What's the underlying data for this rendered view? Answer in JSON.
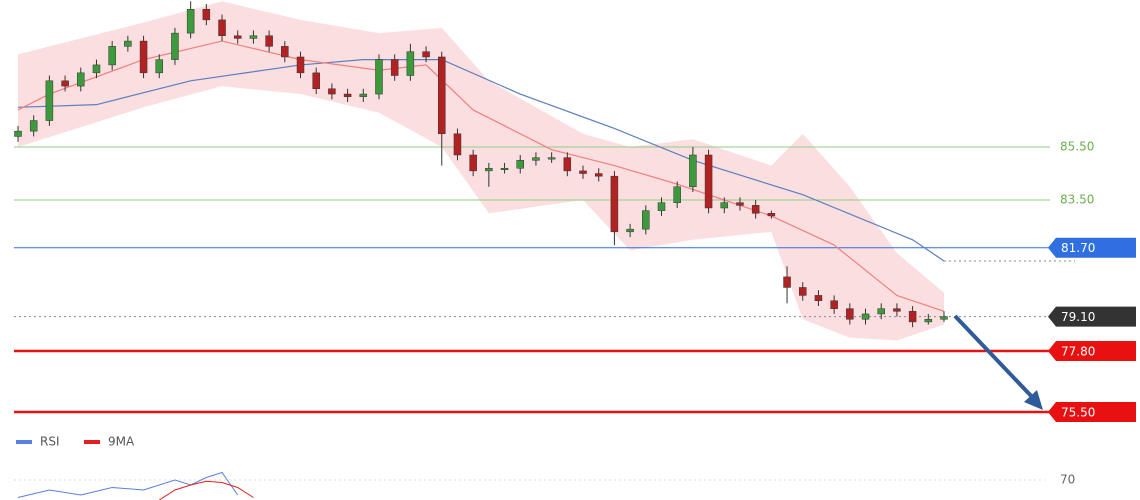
{
  "chart_data": {
    "type": "candlestick",
    "xlim": [
      0,
      59
    ],
    "ylim": [
      74.82,
      91.05
    ],
    "up_color": "#3c9a3c",
    "down_color": "#b22222",
    "open": [
      85.9,
      86.1,
      86.5,
      88.0,
      87.8,
      88.3,
      88.6,
      89.3,
      89.5,
      88.3,
      88.8,
      89.8,
      90.7,
      90.3,
      89.7,
      89.6,
      89.7,
      89.3,
      88.9,
      88.3,
      87.7,
      87.5,
      87.4,
      87.5,
      88.8,
      88.2,
      89.1,
      88.9,
      86.0,
      85.2,
      84.6,
      84.7,
      84.7,
      85.0,
      85.1,
      85.1,
      84.6,
      84.5,
      84.4,
      82.3,
      82.4,
      83.1,
      83.4,
      84.0,
      85.2,
      83.2,
      83.4,
      83.3,
      83.0,
      80.6,
      80.2,
      79.9,
      79.7,
      79.4,
      79.0,
      79.2,
      79.4,
      79.3,
      78.9,
      79.0
    ],
    "high": [
      86.3,
      86.7,
      88.2,
      88.2,
      88.5,
      88.8,
      89.5,
      89.7,
      89.7,
      89.0,
      90.0,
      91.0,
      90.9,
      90.5,
      89.9,
      89.9,
      89.9,
      89.5,
      89.1,
      88.5,
      87.9,
      87.7,
      87.7,
      89.0,
      89.0,
      89.4,
      89.3,
      89.1,
      86.2,
      85.4,
      84.9,
      84.9,
      85.2,
      85.3,
      85.3,
      85.3,
      84.8,
      84.7,
      84.6,
      82.6,
      83.3,
      83.6,
      84.2,
      85.5,
      85.4,
      83.6,
      83.6,
      83.5,
      83.1,
      81.0,
      80.4,
      80.1,
      79.9,
      79.6,
      79.4,
      79.6,
      79.6,
      79.5,
      79.2,
      79.3
    ],
    "low": [
      85.7,
      85.9,
      86.3,
      87.6,
      87.6,
      88.1,
      88.4,
      89.1,
      88.1,
      88.1,
      88.6,
      89.6,
      90.1,
      89.5,
      89.4,
      89.4,
      89.1,
      88.7,
      88.1,
      87.5,
      87.3,
      87.2,
      87.2,
      87.3,
      88.0,
      88.0,
      88.7,
      84.8,
      85.0,
      84.4,
      84.0,
      84.5,
      84.5,
      84.8,
      84.9,
      84.4,
      84.3,
      84.2,
      81.8,
      82.1,
      82.2,
      82.9,
      83.2,
      83.8,
      83.0,
      83.0,
      83.1,
      82.8,
      82.8,
      79.6,
      79.7,
      79.5,
      79.2,
      78.8,
      78.8,
      79.0,
      79.1,
      78.7,
      78.8,
      78.9
    ],
    "close": [
      86.1,
      86.5,
      88.0,
      87.8,
      88.3,
      88.6,
      89.3,
      89.5,
      88.3,
      88.8,
      89.8,
      90.7,
      90.3,
      89.7,
      89.6,
      89.7,
      89.3,
      88.9,
      88.3,
      87.7,
      87.5,
      87.4,
      87.5,
      88.8,
      88.2,
      89.1,
      88.9,
      86.0,
      85.2,
      84.6,
      84.7,
      84.7,
      85.0,
      85.1,
      85.1,
      84.6,
      84.5,
      84.4,
      82.3,
      82.4,
      83.1,
      83.4,
      84.0,
      85.2,
      83.2,
      83.4,
      83.3,
      83.0,
      82.9,
      80.2,
      79.9,
      79.7,
      79.4,
      79.0,
      79.2,
      79.4,
      79.3,
      78.9,
      79.0,
      79.1
    ],
    "band": {
      "color": "#f8c8cc",
      "x": [
        0,
        8,
        13,
        18,
        23,
        27,
        30,
        36,
        39,
        43,
        48,
        50,
        53,
        56,
        59
      ],
      "upper": [
        89.0,
        90.2,
        91.0,
        90.3,
        89.8,
        90.0,
        88.0,
        86.0,
        85.5,
        85.8,
        84.8,
        86.0,
        84.0,
        81.5,
        80.0
      ],
      "lower": [
        85.5,
        87.0,
        87.8,
        87.5,
        86.8,
        85.5,
        83.0,
        83.5,
        81.6,
        82.0,
        82.3,
        79.0,
        78.3,
        78.2,
        78.8
      ]
    },
    "lines": [
      {
        "color": "#5b7fbf",
        "x": [
          0,
          5,
          11,
          18,
          22,
          27,
          32,
          38,
          43,
          50,
          57,
          59
        ],
        "values": [
          87.0,
          87.1,
          88.0,
          88.6,
          88.8,
          88.8,
          87.5,
          86.2,
          85.0,
          83.7,
          82.0,
          81.2
        ]
      },
      {
        "color": "#f08080",
        "x": [
          0,
          2,
          8,
          13,
          18,
          23,
          26,
          29,
          34,
          38,
          42,
          46,
          48,
          52,
          56,
          59
        ],
        "values": [
          86.9,
          87.5,
          88.8,
          89.5,
          88.8,
          88.4,
          88.6,
          86.9,
          85.4,
          84.8,
          84.1,
          83.3,
          82.9,
          81.8,
          79.9,
          79.3
        ]
      }
    ],
    "levels": [
      {
        "value": 85.5,
        "label": "85.50",
        "color": "#8fcf7f",
        "tag": false
      },
      {
        "value": 83.5,
        "label": "83.50",
        "color": "#8fcf7f",
        "tag": false
      },
      {
        "value": 81.7,
        "label": "81.70",
        "color": "#2f6fe0",
        "tag": true
      },
      {
        "value": 79.1,
        "label": "79.10",
        "color": "#333333",
        "tag": true,
        "dotted": true
      },
      {
        "value": 77.8,
        "label": "77.80",
        "color": "#e81010",
        "tag": true
      },
      {
        "value": 75.5,
        "label": "75.50",
        "color": "#e81010",
        "tag": true
      }
    ],
    "rsi_panel": {
      "ylim": [
        62,
        74
      ],
      "yticks": [
        70
      ],
      "series": [
        {
          "name": "RSI",
          "color": "#5b7fdf",
          "x": [
            0,
            2,
            4,
            6,
            8,
            9,
            10,
            11,
            12,
            13,
            14
          ],
          "values": [
            63,
            66,
            64,
            67,
            66,
            68,
            70,
            68,
            71,
            73,
            64
          ]
        },
        {
          "name": "9MA",
          "color": "#e02020",
          "x": [
            9,
            10,
            11,
            12,
            13,
            14,
            15
          ],
          "values": [
            62,
            66,
            68,
            69.5,
            69,
            67,
            63
          ]
        }
      ]
    }
  }
}
